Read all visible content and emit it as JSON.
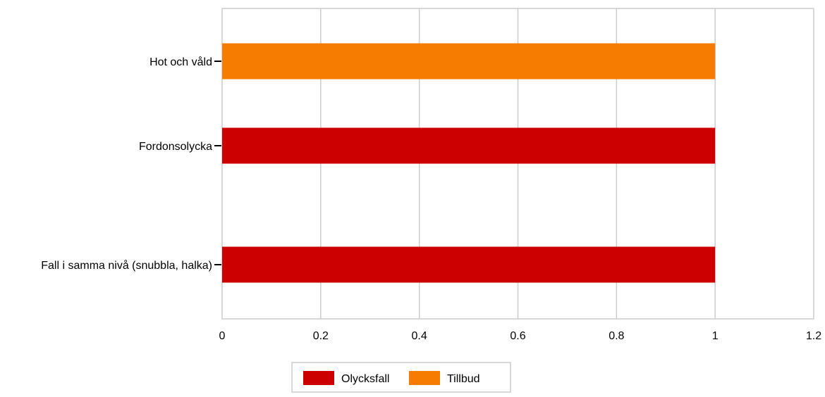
{
  "chart_data": {
    "type": "bar",
    "orientation": "horizontal",
    "categories": [
      "Hot och våld",
      "Fordonsolycka",
      "Fall i samma nivå (snubbla, halka)"
    ],
    "series": [
      {
        "name": "Olycksfall",
        "color": "#cc0000",
        "values": [
          0,
          1,
          1
        ]
      },
      {
        "name": "Tillbud",
        "color": "#f57c00",
        "values": [
          1,
          0,
          0
        ]
      }
    ],
    "xlim": [
      0,
      1.2
    ],
    "x_ticks": [
      "0",
      "0.2",
      "0.4",
      "0.6",
      "0.8",
      "1",
      "1.2"
    ],
    "grid": true,
    "legend_position": "bottom",
    "title": "",
    "xlabel": "",
    "ylabel": ""
  }
}
